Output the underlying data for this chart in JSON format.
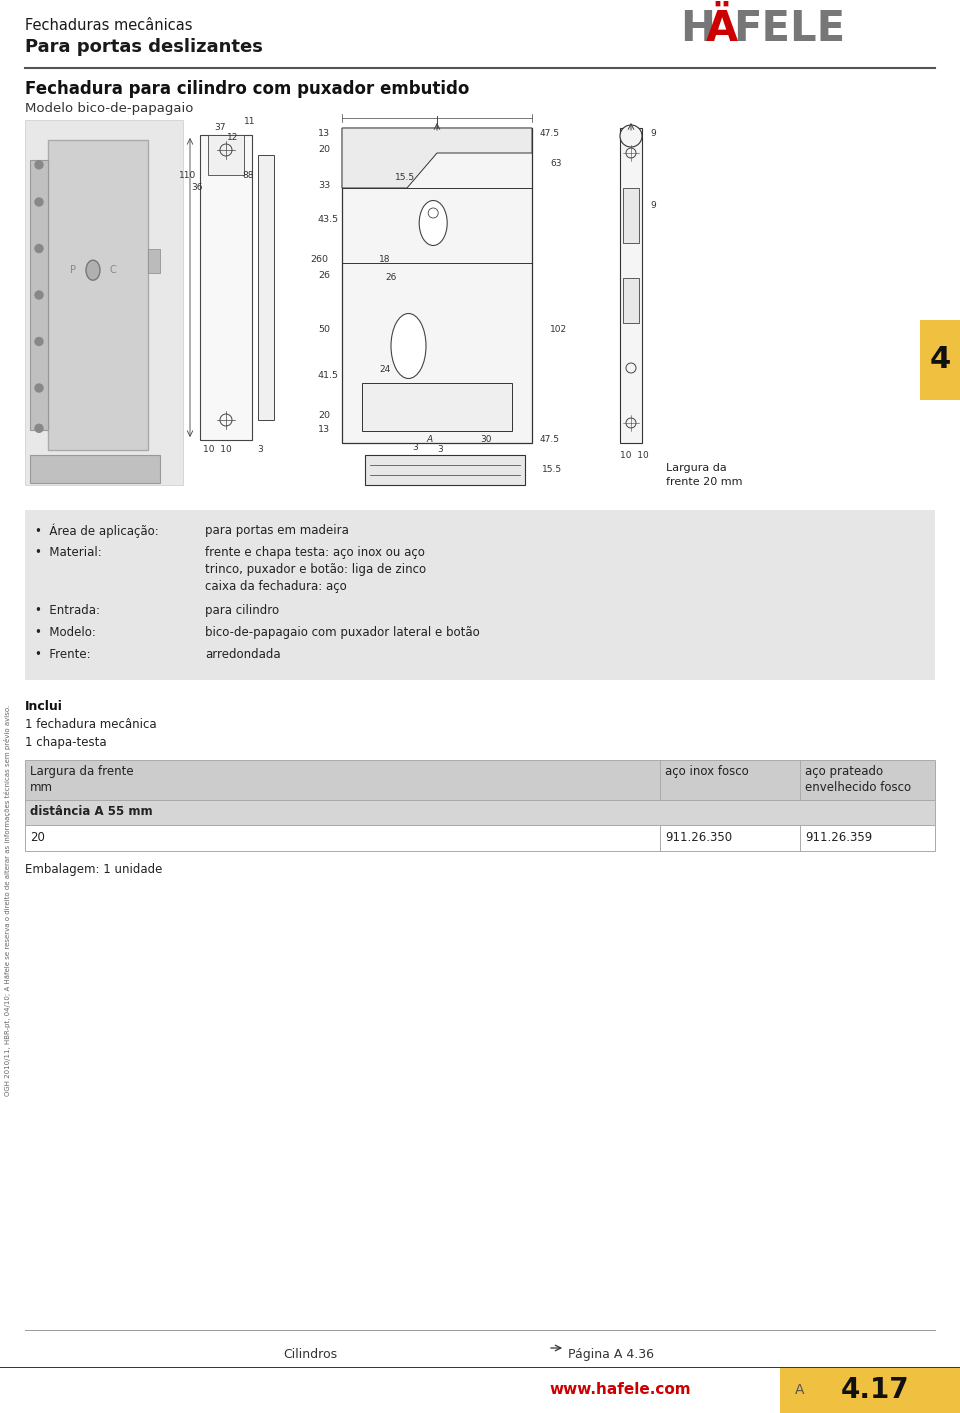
{
  "page_width": 9.6,
  "page_height": 14.13,
  "bg_color": "#ffffff",
  "header_line1": "Fechaduras mecânicas",
  "header_line2": "Para portas deslizantes",
  "section_title": "Fechadura para cilindro com puxador embutido",
  "section_subtitle": "Modelo bico-de-papagaio",
  "specs_bg_color": "#e6e6e6",
  "specs": [
    {
      "label": "Área de aplicação:",
      "value": "para portas em madeira"
    },
    {
      "label": "Material:",
      "value": "frente e chapa testa: aço inox ou aço\ntrinco, puxador e botão: liga de zinco\ncaixa da fechadura: aço"
    },
    {
      "label": "Entrada:",
      "value": "para cilindro"
    },
    {
      "label": "Modelo:",
      "value": "bico-de-papagaio com puxador lateral e botão"
    },
    {
      "label": "Frente:",
      "value": "arredondada"
    }
  ],
  "inclui_title": "Inclui",
  "inclui_items": [
    "1 fechadura mecânica",
    "1 chapa-testa"
  ],
  "table_header_col1": "Largura da frente\nmm",
  "table_header_col2": "aço inox fosco",
  "table_header_col3": "aço prateado\nenvelhecido fosco",
  "table_subheader": "distância A 55 mm",
  "table_rows": [
    {
      "col1": "20",
      "col2": "911.26.350",
      "col3": "911.26.359"
    }
  ],
  "embalagem": "Embalagem: 1 unidade",
  "footer_left": "Cilindros",
  "footer_right": "Página A 4.36",
  "bottom_url": "www.hafele.com",
  "bottom_a": "A",
  "bottom_page": "4.17",
  "sidebar_text": "OGH 2010/11, HBR-pt, 04/10; A Häfele se reserva o direito de alterar as informações técnicas sem prévio aviso.",
  "yellow_color": "#f0c040",
  "tab_number": "4"
}
